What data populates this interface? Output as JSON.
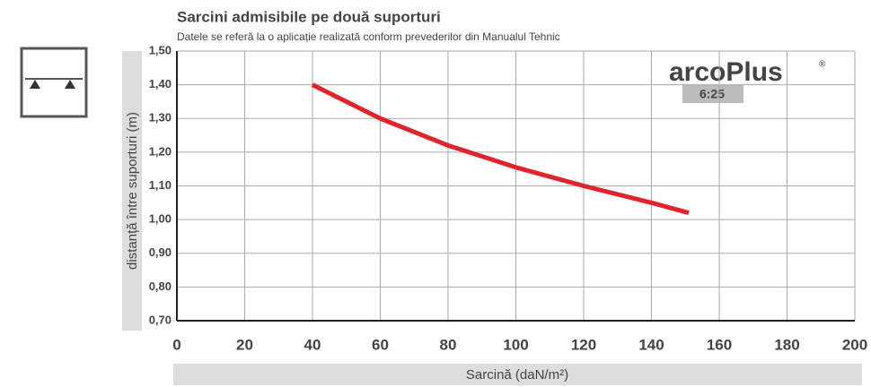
{
  "chart_data": {
    "type": "line",
    "title": "Sarcini admisibile pe două suporturi",
    "subtitle": "Datele se referă la o aplicație realizată conform prevederilor din Manualul Tehnic",
    "x_label": "Sarcină (daN/m²)",
    "y_label": "distanță între suporturi (m)",
    "logo": {
      "name": "arcoPlus",
      "mark": "®",
      "edition": "6:25"
    },
    "x": [
      40,
      60,
      80,
      100,
      120,
      140,
      151
    ],
    "series": [
      {
        "color": "#e3232c",
        "values": [
          1.4,
          1.3,
          1.22,
          1.155,
          1.1,
          1.05,
          1.02
        ]
      }
    ],
    "xlim": [
      0,
      200
    ],
    "xticks": [
      0,
      20,
      40,
      60,
      80,
      100,
      120,
      140,
      160,
      180,
      200
    ],
    "ylim": [
      0.7,
      1.5
    ],
    "yticks": [
      {
        "value": 0.7,
        "label": "0,70"
      },
      {
        "value": 0.8,
        "label": "0,80"
      },
      {
        "value": 0.9,
        "label": "0,90"
      },
      {
        "value": 1.0,
        "label": "1,00"
      },
      {
        "value": 1.1,
        "label": "1,10"
      },
      {
        "value": 1.2,
        "label": "1,20"
      },
      {
        "value": 1.3,
        "label": "1,30"
      },
      {
        "value": 1.4,
        "label": "1,40"
      },
      {
        "value": 1.5,
        "label": "1,50"
      }
    ],
    "grid": true
  }
}
